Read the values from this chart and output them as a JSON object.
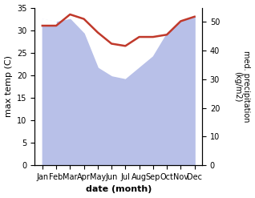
{
  "months": [
    "Jan",
    "Feb",
    "Mar",
    "Apr",
    "May",
    "Jun",
    "Jul",
    "Aug",
    "Sep",
    "Oct",
    "Nov",
    "Dec"
  ],
  "month_indices": [
    0,
    1,
    2,
    3,
    4,
    5,
    6,
    7,
    8,
    9,
    10,
    11
  ],
  "max_temp": [
    31.0,
    31.0,
    33.5,
    32.5,
    29.5,
    27.0,
    26.5,
    28.5,
    28.5,
    29.0,
    32.0,
    33.0
  ],
  "precipitation": [
    51,
    50,
    51,
    46,
    34,
    31,
    30,
    34,
    38,
    46,
    50,
    52
  ],
  "temp_color": "#c0392b",
  "precip_fill_color": "#b8c0e8",
  "xlabel": "date (month)",
  "ylabel_left": "max temp (C)",
  "ylabel_right": "med. precipitation\n(kg/m2)",
  "ylim_left": [
    0,
    35
  ],
  "ylim_right": [
    0,
    55
  ],
  "yticks_left": [
    0,
    5,
    10,
    15,
    20,
    25,
    30,
    35
  ],
  "yticks_right": [
    0,
    10,
    20,
    30,
    40,
    50
  ],
  "line_width": 1.8
}
